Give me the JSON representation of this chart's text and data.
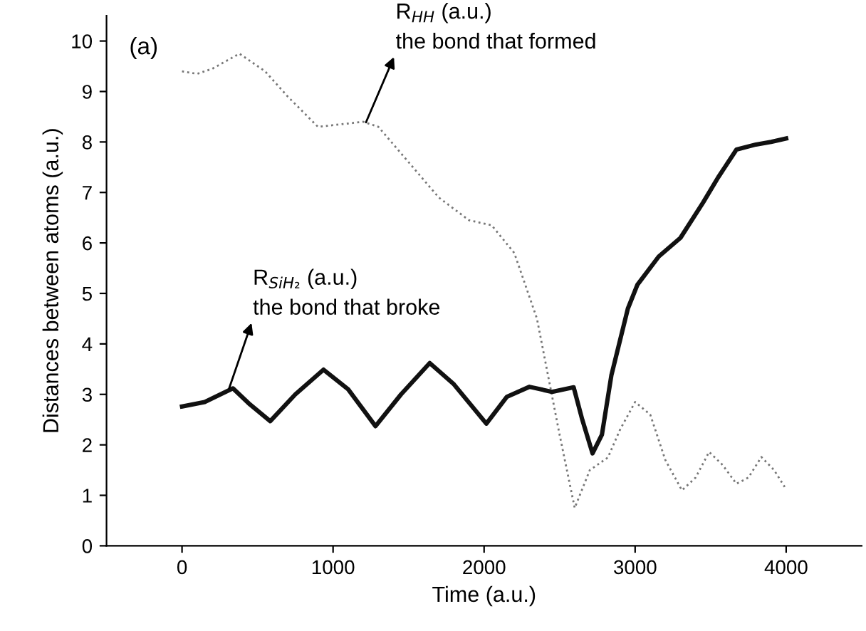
{
  "chart_data": {
    "type": "line",
    "xlabel": "Time (a.u.)",
    "ylabel": "Distances between atoms (a.u.)",
    "xlim": [
      -500,
      4500
    ],
    "xticks": [
      0,
      1000,
      2000,
      3000,
      4000
    ],
    "ylim": [
      0,
      10.5
    ],
    "yticks": [
      0,
      1,
      2,
      3,
      4,
      5,
      6,
      7,
      8,
      9,
      10
    ],
    "grid": false,
    "legend": false,
    "series": [
      {
        "color": "#777777",
        "line_style": "dotted",
        "x": [
          0,
          100,
          200,
          380,
          550,
          700,
          900,
          1050,
          1200,
          1300,
          1500,
          1700,
          1900,
          2050,
          2200,
          2350,
          2500,
          2600,
          2700,
          2820,
          2900,
          3000,
          3100,
          3200,
          3310,
          3400,
          3490,
          3580,
          3670,
          3750,
          3836,
          3920,
          4000
        ],
        "values": [
          9.4,
          9.35,
          9.45,
          9.75,
          9.4,
          8.9,
          8.3,
          8.35,
          8.4,
          8.3,
          7.6,
          6.9,
          6.45,
          6.35,
          5.8,
          4.5,
          2.2,
          0.75,
          1.5,
          1.75,
          2.3,
          2.85,
          2.6,
          1.7,
          1.1,
          1.35,
          1.86,
          1.6,
          1.23,
          1.35,
          1.76,
          1.5,
          1.12
        ]
      },
      {
        "color": "#111111",
        "line_style": "solid",
        "x": [
          0,
          150,
          337,
          450,
          584,
          750,
          937,
          1100,
          1281,
          1450,
          1640,
          1800,
          2015,
          2150,
          2300,
          2450,
          2593,
          2650,
          2718,
          2780,
          2843,
          2952,
          3015,
          3156,
          3300,
          3450,
          3550,
          3671,
          3800,
          3900,
          4000
        ],
        "values": [
          2.76,
          2.85,
          3.12,
          2.8,
          2.47,
          3.0,
          3.49,
          3.1,
          2.37,
          3.0,
          3.62,
          3.2,
          2.42,
          2.95,
          3.15,
          3.05,
          3.14,
          2.5,
          1.83,
          2.2,
          3.38,
          4.7,
          5.17,
          5.73,
          6.1,
          6.8,
          7.3,
          7.85,
          7.95,
          8.0,
          8.07
        ]
      }
    ],
    "annotations": [
      "(a)",
      {
        "text": "R$_{HH}$ (a.u.)\nthe bond that formed",
        "x": 1218,
        "y": 8.39
      },
      {
        "text": "R$_{SiH₂}$ (a.u.)\nthe bond that broke",
        "x": 312,
        "y": 3.12
      }
    ]
  }
}
